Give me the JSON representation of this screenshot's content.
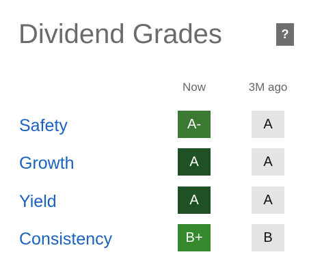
{
  "header": {
    "title": "Dividend Grades",
    "help_label": "?"
  },
  "columns": {
    "now": "Now",
    "ago": "3M ago"
  },
  "grades": [
    {
      "metric": "Safety",
      "now": "A-",
      "ago": "A",
      "now_color": "#3b7a32"
    },
    {
      "metric": "Growth",
      "now": "A",
      "ago": "A",
      "now_color": "#1e5123"
    },
    {
      "metric": "Yield",
      "now": "A",
      "ago": "A",
      "now_color": "#1e5123"
    },
    {
      "metric": "Consistency",
      "now": "B+",
      "ago": "B",
      "now_color": "#37892e"
    }
  ],
  "colors": {
    "title": "#6b6b6b",
    "link": "#1a62c0",
    "past_grade_bg": "#e4e4e4",
    "help_bg": "#6e6e6e"
  }
}
